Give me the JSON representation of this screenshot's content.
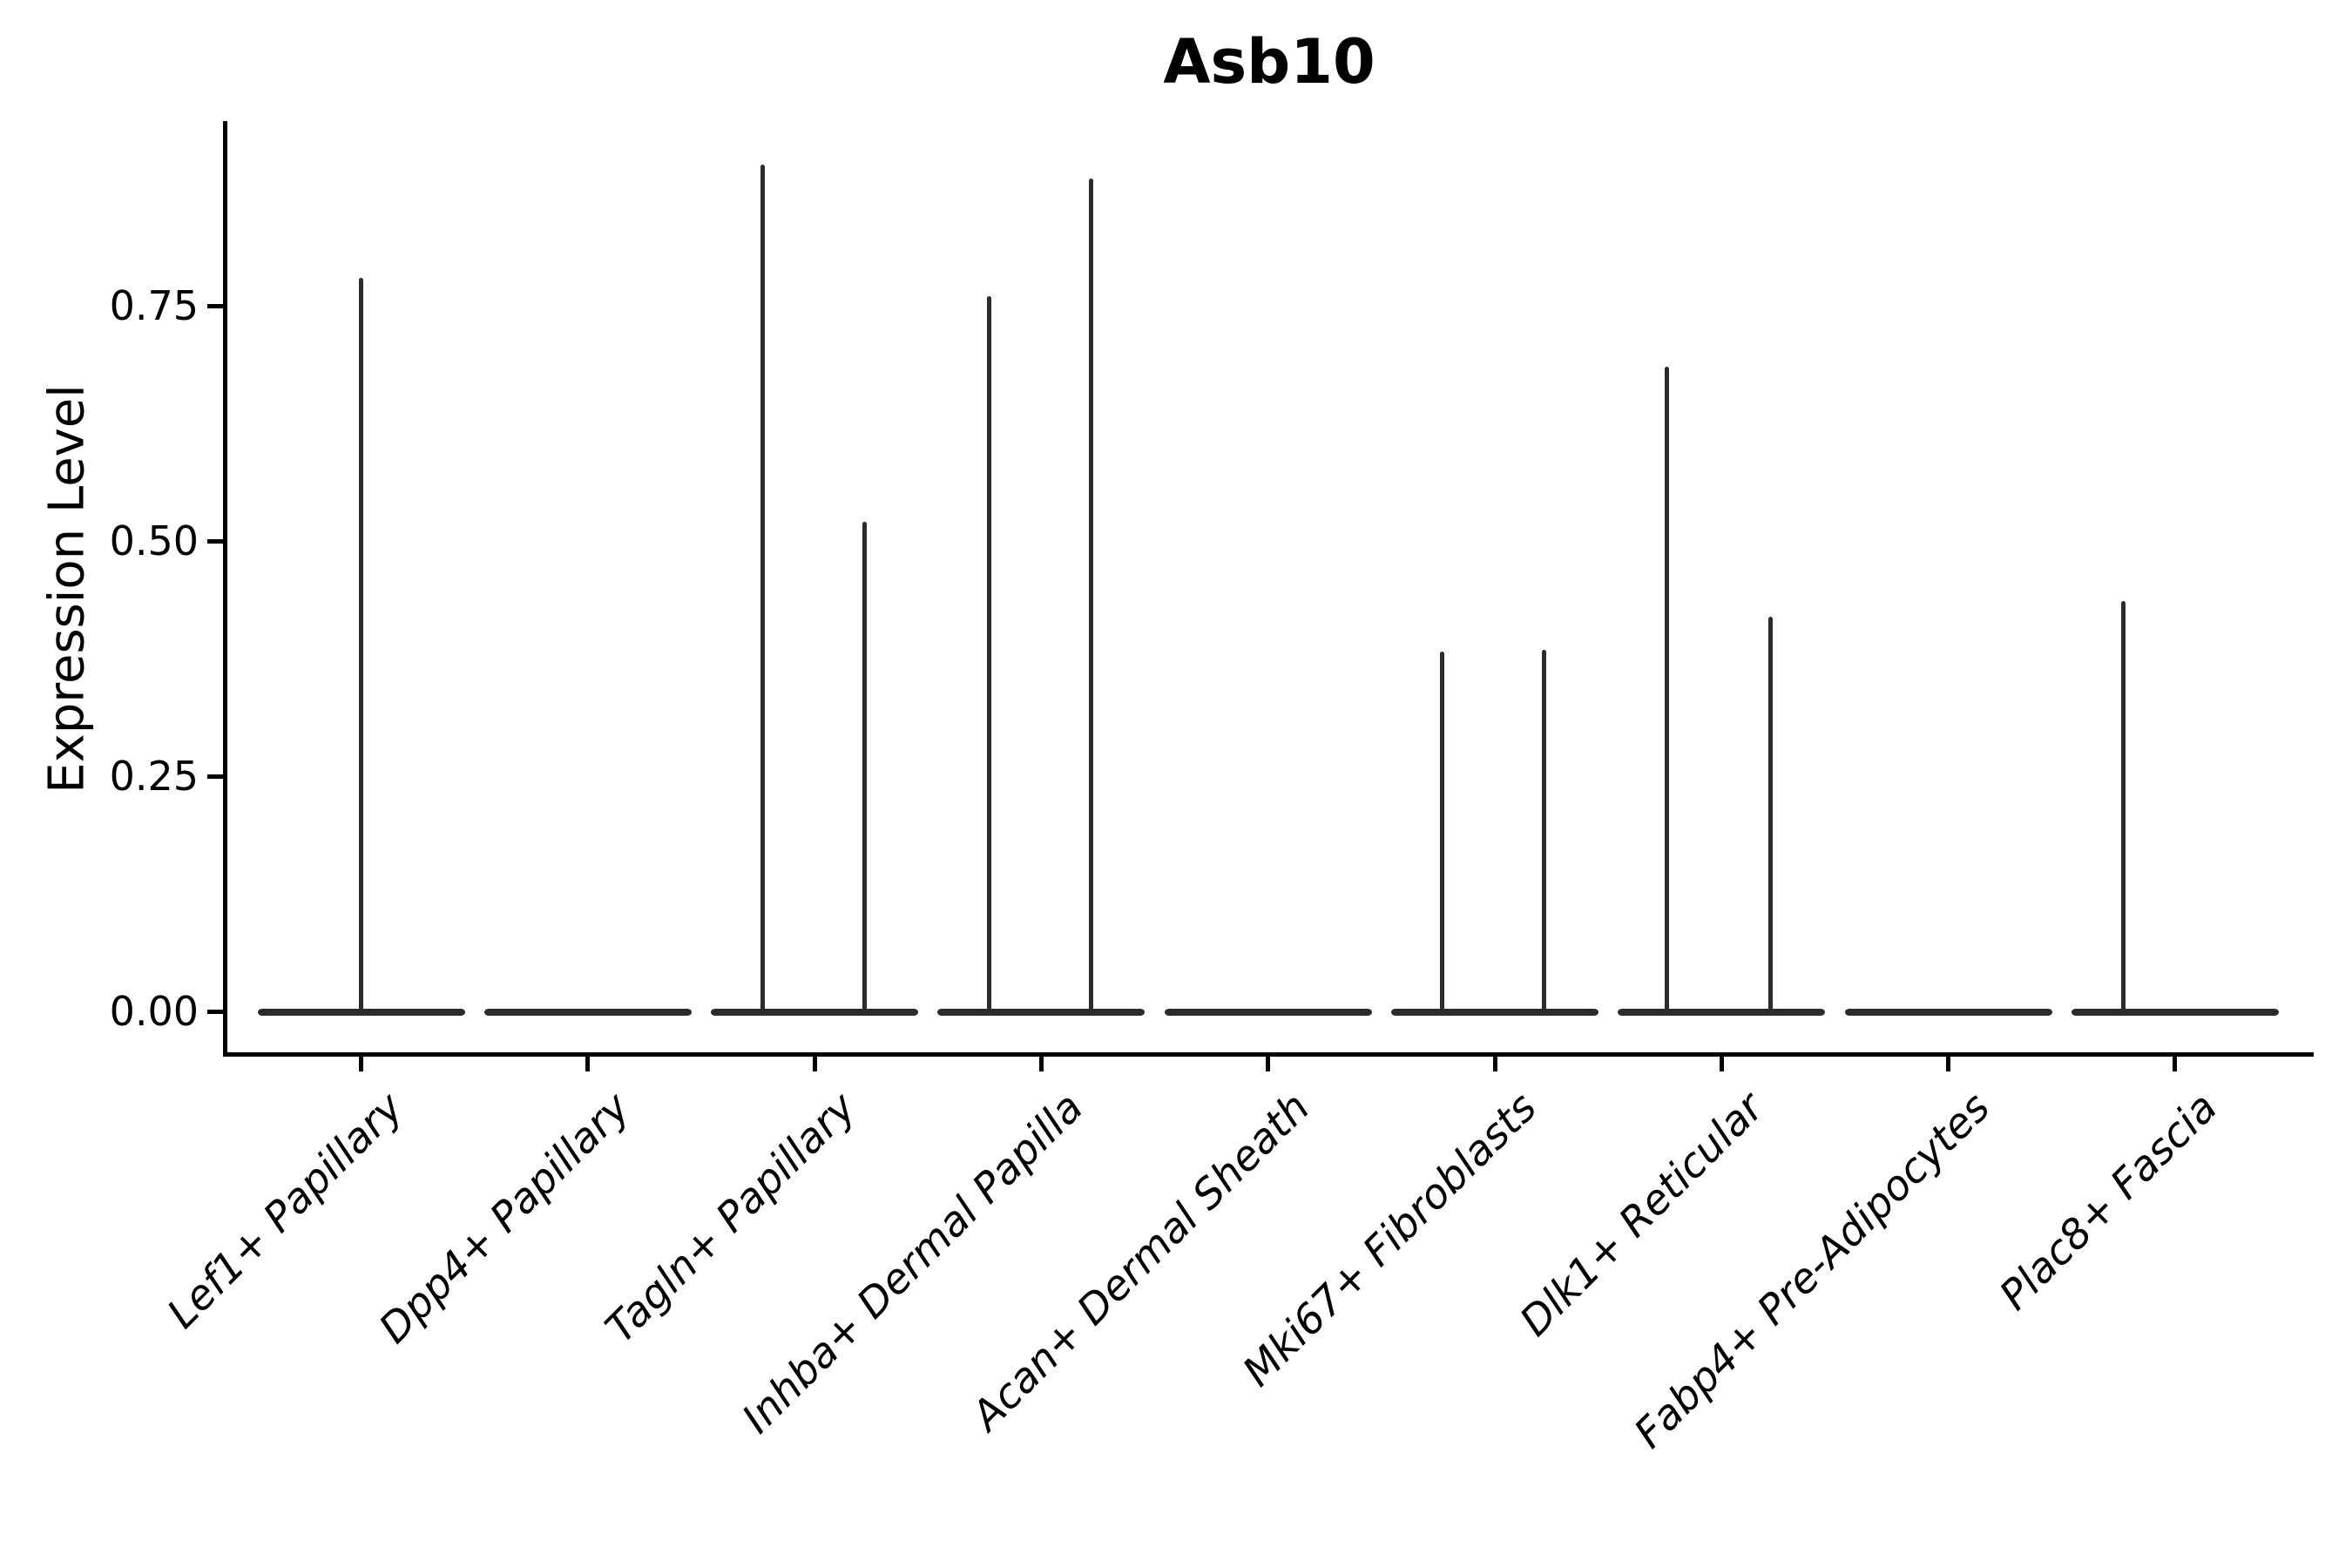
{
  "title": "Asb10",
  "chart_data": {
    "type": "violin",
    "title": "Asb10",
    "xlabel": "",
    "ylabel": "Expression Level",
    "ylim": [
      -0.045,
      0.945
    ],
    "grid": false,
    "legend": "none",
    "yticks": [
      {
        "label": "0.00",
        "value": 0.0
      },
      {
        "label": "0.25",
        "value": 0.25
      },
      {
        "label": "0.50",
        "value": 0.5
      },
      {
        "label": "0.75",
        "value": 0.75
      }
    ],
    "categories": [
      "Lef1+ Papillary",
      "Dpp4+ Papillary",
      "Tagln+ Papillary",
      "Inhba+ Dermal Papilla",
      "Acan+ Dermal Sheath",
      "Mki67+ Fibroblasts",
      "Dlk1+ Reticular",
      "Fabp4+ Pre-Adipocytes",
      "Plac8+ Fascia"
    ],
    "violins": [
      {
        "category": "Lef1+ Papillary",
        "body_at_zero": true,
        "spikes": [
          {
            "x_offset": 0,
            "value": 0.78
          }
        ]
      },
      {
        "category": "Dpp4+ Papillary",
        "body_at_zero": true,
        "spikes": []
      },
      {
        "category": "Tagln+ Papillary",
        "body_at_zero": true,
        "spikes": [
          {
            "x_offset": -60,
            "value": 0.9
          },
          {
            "x_offset": 57,
            "value": 0.52
          }
        ]
      },
      {
        "category": "Inhba+ Dermal Papilla",
        "body_at_zero": true,
        "spikes": [
          {
            "x_offset": -60,
            "value": 0.76
          },
          {
            "x_offset": 57,
            "value": 0.885
          }
        ]
      },
      {
        "category": "Acan+ Dermal Sheath",
        "body_at_zero": true,
        "spikes": []
      },
      {
        "category": "Mki67+ Fibroblasts",
        "body_at_zero": true,
        "spikes": [
          {
            "x_offset": -61,
            "value": 0.382
          },
          {
            "x_offset": 56,
            "value": 0.384
          }
        ]
      },
      {
        "category": "Dlk1+ Reticular",
        "body_at_zero": true,
        "spikes": [
          {
            "x_offset": -63,
            "value": 0.685
          },
          {
            "x_offset": 56,
            "value": 0.419
          }
        ]
      },
      {
        "category": "Fabp4+ Pre-Adipocytes",
        "body_at_zero": true,
        "spikes": []
      },
      {
        "category": "Plac8+ Fascia",
        "body_at_zero": true,
        "spikes": [
          {
            "x_offset": -59,
            "value": 0.436
          }
        ]
      }
    ]
  },
  "colors": {
    "background": "#ffffff",
    "violin": "#2b2b2b",
    "axis": "#000000",
    "text": "#000000"
  }
}
